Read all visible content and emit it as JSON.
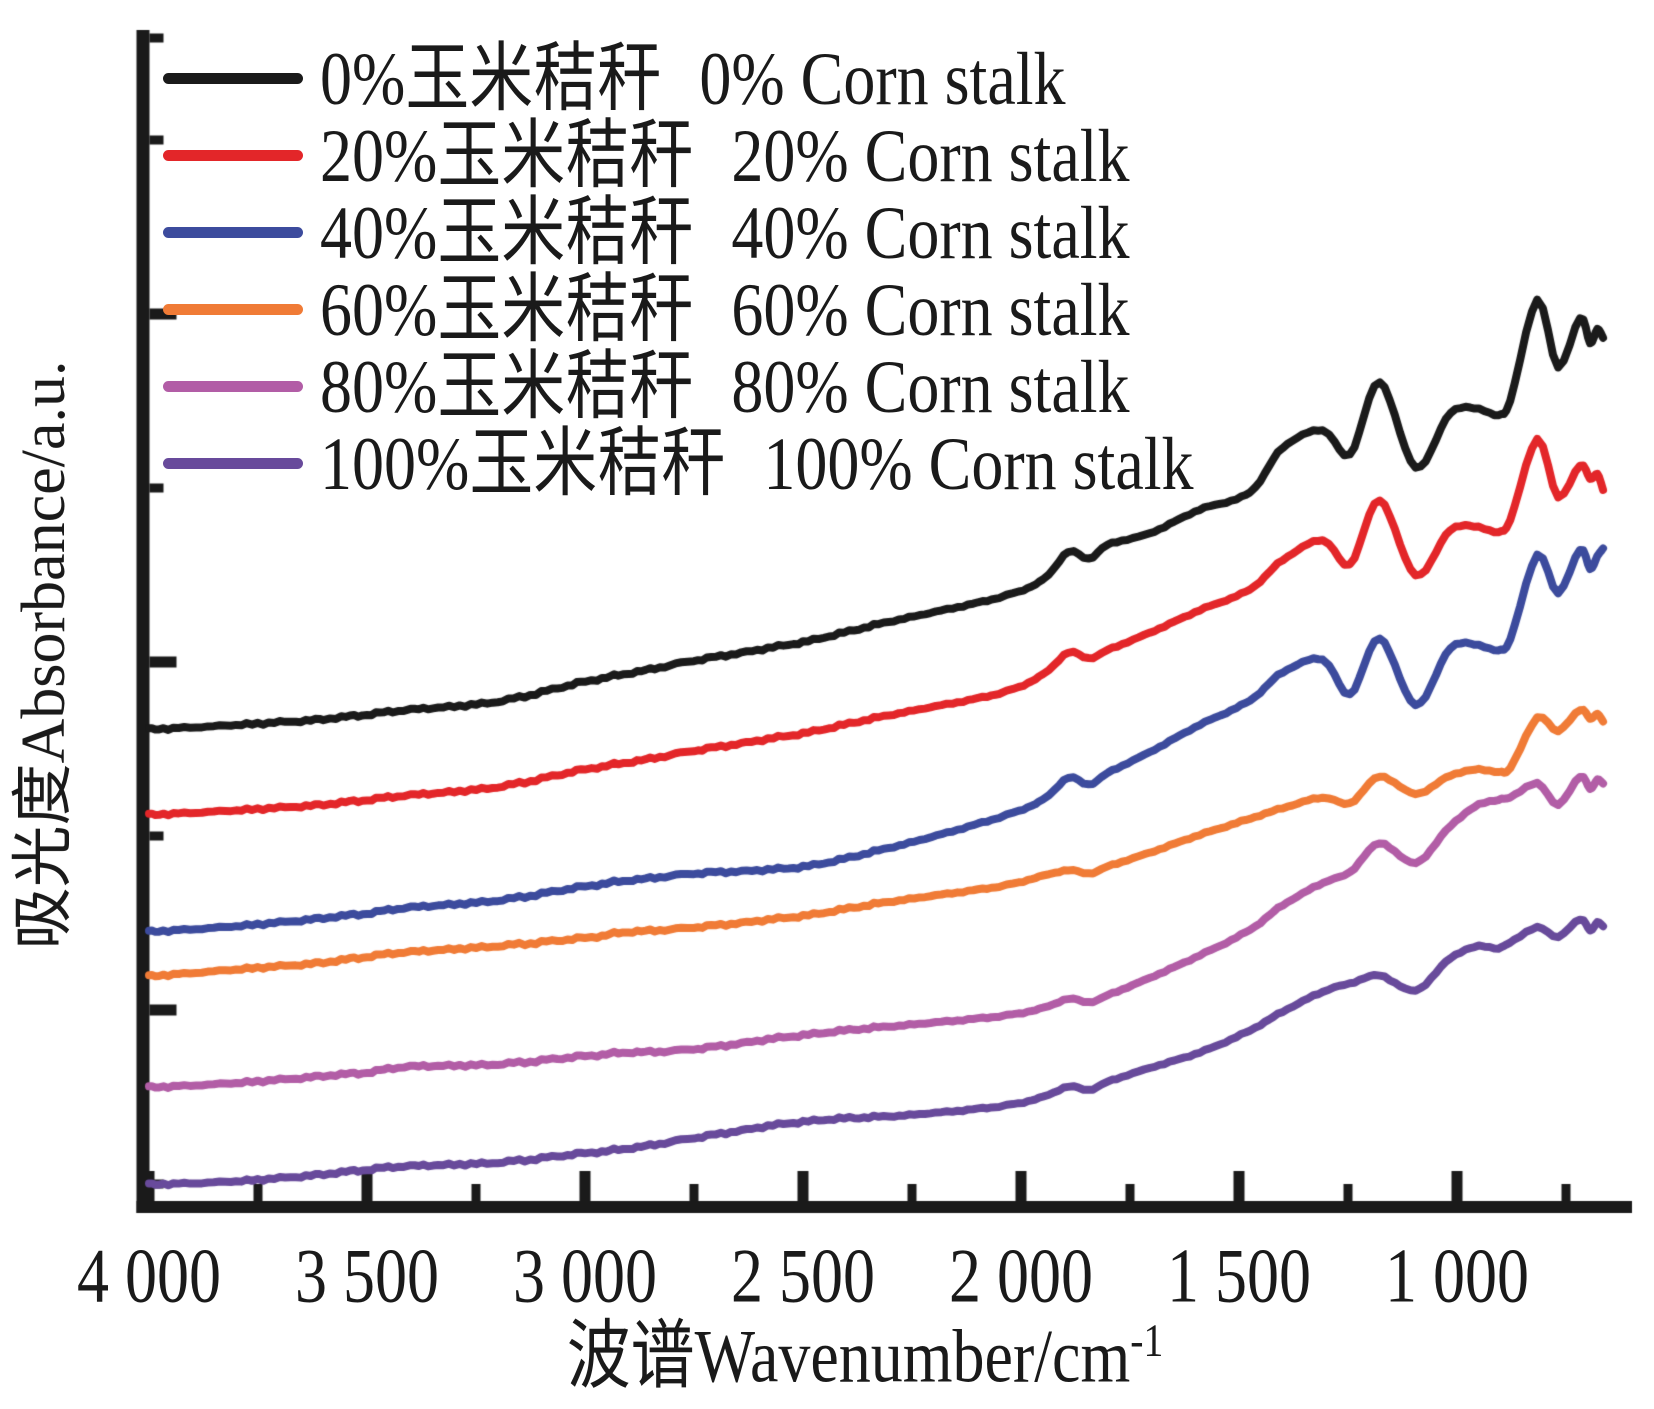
{
  "figure": {
    "y_axis_label": "吸光度Absorbance/a.u.",
    "x_axis_label_main": "波谱Wavenumber/cm",
    "x_axis_label_sup": "-1"
  },
  "chart_data": {
    "type": "line",
    "title": "",
    "xlabel": "波谱Wavenumber/cm-1",
    "ylabel": "吸光度Absorbance/a.u.",
    "grid": false,
    "legend_position": "top-left",
    "axis_color": "#1a1a1a",
    "background_color": "#ffffff",
    "x_axis": {
      "unit": "cm-1",
      "reversed": true,
      "min": 650,
      "max": 4000,
      "major_ticks": [
        4000,
        3500,
        3000,
        2500,
        2000,
        1500,
        1000
      ],
      "major_tick_labels": [
        "4 000",
        "3 500",
        "3 000",
        "2 500",
        "2 000",
        "1 500",
        "1 000"
      ],
      "minor_ticks": [
        3750,
        3250,
        2750,
        2250,
        1750,
        1250,
        750
      ]
    },
    "y_axis": {
      "unit": "a.u.",
      "min": 0,
      "max": 10,
      "labels_shown": false
    },
    "wavenumbers": [
      4000,
      3800,
      3600,
      3500,
      3400,
      3200,
      3000,
      2900,
      2750,
      2500,
      2280,
      2050,
      1950,
      1892,
      1845,
      1800,
      1704,
      1590,
      1475,
      1400,
      1308,
      1246,
      1177,
      1095,
      1015,
      950,
      905,
      878,
      816,
      768,
      718,
      695,
      678,
      665
    ],
    "series": [
      {
        "label_cn": "0%玉米秸秆",
        "label_en": "0% Corn stalk",
        "color": "#1a1a1a",
        "absorbance": [
          4.08,
          4.12,
          4.17,
          4.21,
          4.25,
          4.32,
          4.49,
          4.56,
          4.67,
          4.83,
          5.02,
          5.21,
          5.36,
          5.6,
          5.54,
          5.66,
          5.76,
          5.96,
          6.11,
          6.49,
          6.64,
          6.43,
          7.05,
          6.32,
          6.79,
          6.82,
          6.77,
          6.89,
          7.75,
          7.18,
          7.6,
          7.39,
          7.5,
          7.43
        ]
      },
      {
        "label_cn": "20%玉米秸秆",
        "label_en": "20% Corn stalk",
        "color": "#e32629",
        "absorbance": [
          3.35,
          3.39,
          3.44,
          3.48,
          3.52,
          3.59,
          3.74,
          3.8,
          3.9,
          4.05,
          4.22,
          4.39,
          4.55,
          4.74,
          4.69,
          4.76,
          4.91,
          5.1,
          5.28,
          5.53,
          5.7,
          5.49,
          6.04,
          5.4,
          5.79,
          5.81,
          5.77,
          5.87,
          6.56,
          6.07,
          6.34,
          6.23,
          6.26,
          6.13
        ]
      },
      {
        "label_cn": "40%玉米秸秆",
        "label_en": "40% Corn stalk",
        "color": "#3c4b9d",
        "absorbance": [
          2.35,
          2.4,
          2.47,
          2.51,
          2.56,
          2.62,
          2.74,
          2.79,
          2.85,
          2.91,
          3.09,
          3.33,
          3.48,
          3.67,
          3.61,
          3.71,
          3.89,
          4.12,
          4.33,
          4.57,
          4.68,
          4.38,
          4.86,
          4.29,
          4.78,
          4.8,
          4.76,
          4.85,
          5.57,
          5.25,
          5.62,
          5.46,
          5.56,
          5.63
        ]
      },
      {
        "label_cn": "60%玉米秸秆",
        "label_en": "60% Corn stalk",
        "color": "#f07b36",
        "absorbance": [
          1.97,
          2.03,
          2.09,
          2.14,
          2.18,
          2.23,
          2.3,
          2.35,
          2.39,
          2.49,
          2.62,
          2.74,
          2.83,
          2.88,
          2.85,
          2.91,
          3.03,
          3.18,
          3.32,
          3.41,
          3.5,
          3.45,
          3.68,
          3.53,
          3.69,
          3.74,
          3.72,
          3.75,
          4.18,
          4.07,
          4.25,
          4.18,
          4.21,
          4.15
        ]
      },
      {
        "label_cn": "80%玉米秸秆",
        "label_en": "80% Corn stalk",
        "color": "#b25da6",
        "absorbance": [
          1.02,
          1.06,
          1.12,
          1.15,
          1.2,
          1.22,
          1.29,
          1.32,
          1.35,
          1.47,
          1.55,
          1.63,
          1.7,
          1.78,
          1.75,
          1.81,
          1.96,
          2.15,
          2.37,
          2.58,
          2.77,
          2.86,
          3.11,
          2.94,
          3.26,
          3.44,
          3.48,
          3.5,
          3.62,
          3.44,
          3.68,
          3.58,
          3.65,
          3.62
        ]
      },
      {
        "label_cn": "100%玉米秸秆",
        "label_en": "100% Corn stalk",
        "color": "#684a9b",
        "absorbance": [
          0.19,
          0.22,
          0.28,
          0.32,
          0.35,
          0.38,
          0.46,
          0.5,
          0.59,
          0.73,
          0.78,
          0.86,
          0.94,
          1.03,
          1.0,
          1.07,
          1.19,
          1.32,
          1.51,
          1.67,
          1.84,
          1.91,
          1.98,
          1.85,
          2.13,
          2.23,
          2.21,
          2.26,
          2.39,
          2.31,
          2.46,
          2.37,
          2.43,
          2.4
        ]
      }
    ]
  }
}
